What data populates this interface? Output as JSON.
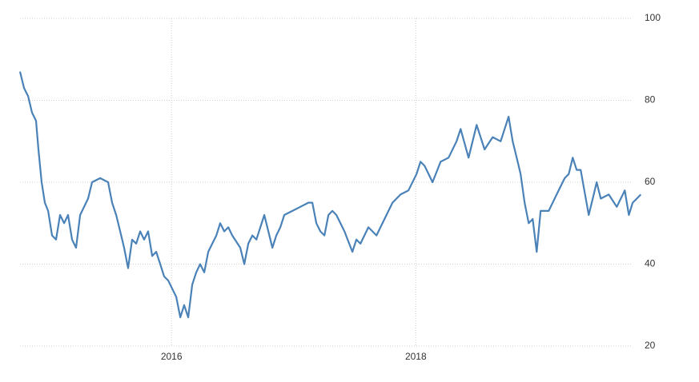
{
  "chart_data": {
    "type": "line",
    "x": [
      2014.76,
      2014.793,
      2014.826,
      2014.858,
      2014.891,
      2014.911,
      2014.937,
      2014.963,
      2014.99,
      2015.022,
      2015.055,
      2015.088,
      2015.121,
      2015.153,
      2015.186,
      2015.219,
      2015.252,
      2015.317,
      2015.35,
      2015.416,
      2015.481,
      2015.514,
      2015.547,
      2015.58,
      2015.612,
      2015.645,
      2015.678,
      2015.711,
      2015.744,
      2015.776,
      2015.809,
      2015.842,
      2015.875,
      2015.908,
      2015.94,
      2015.973,
      2016.006,
      2016.039,
      2016.072,
      2016.104,
      2016.137,
      2016.17,
      2016.203,
      2016.235,
      2016.268,
      2016.301,
      2016.334,
      2016.367,
      2016.399,
      2016.432,
      2016.465,
      2016.498,
      2016.563,
      2016.596,
      2016.629,
      2016.662,
      2016.695,
      2016.76,
      2016.826,
      2016.858,
      2016.891,
      2016.924,
      2016.99,
      2017.055,
      2017.121,
      2017.153,
      2017.186,
      2017.219,
      2017.252,
      2017.285,
      2017.317,
      2017.35,
      2017.416,
      2017.481,
      2017.514,
      2017.547,
      2017.612,
      2017.678,
      2017.744,
      2017.809,
      2017.875,
      2017.94,
      2018.006,
      2018.039,
      2018.072,
      2018.137,
      2018.203,
      2018.268,
      2018.334,
      2018.367,
      2018.432,
      2018.498,
      2018.563,
      2018.629,
      2018.695,
      2018.76,
      2018.793,
      2018.826,
      2018.858,
      2018.891,
      2018.924,
      2018.957,
      2018.99,
      2019.022,
      2019.088,
      2019.153,
      2019.219,
      2019.252,
      2019.285,
      2019.317,
      2019.35,
      2019.416,
      2019.449,
      2019.481,
      2019.514,
      2019.58,
      2019.645,
      2019.711,
      2019.744,
      2019.776,
      2019.809,
      2019.842
    ],
    "series": [
      {
        "color": "#4a82b8",
        "values": [
          87,
          83,
          81,
          77,
          75,
          68,
          60,
          55,
          53,
          47,
          46,
          52,
          50,
          52,
          46,
          44,
          52,
          56,
          60,
          61,
          60,
          55,
          52,
          48,
          44,
          39,
          46,
          45,
          48,
          46,
          48,
          42,
          43,
          40,
          37,
          36,
          34,
          32,
          27,
          30,
          27,
          35,
          38,
          40,
          38,
          43,
          45,
          47,
          50,
          48,
          49,
          47,
          44,
          40,
          45,
          47,
          46,
          52,
          44,
          47,
          49,
          52,
          53,
          54,
          55,
          55,
          50,
          48,
          47,
          52,
          53,
          52,
          48,
          43,
          46,
          45,
          49,
          47,
          51,
          55,
          57,
          58,
          62,
          65,
          64,
          60,
          65,
          66,
          70,
          73,
          66,
          74,
          68,
          71,
          70,
          76,
          70,
          66,
          62,
          55,
          50,
          51,
          43,
          53,
          53,
          57,
          61,
          62,
          66,
          63,
          63,
          52,
          56,
          60,
          56,
          57,
          54,
          58,
          52,
          55,
          56,
          57
        ]
      }
    ],
    "xlim": [
      2014.76,
      2019.84
    ],
    "xticks": [
      2016,
      2018
    ],
    "ylim": [
      20,
      100
    ],
    "yticks": [
      20,
      40,
      60,
      80,
      100
    ],
    "grid": true
  }
}
